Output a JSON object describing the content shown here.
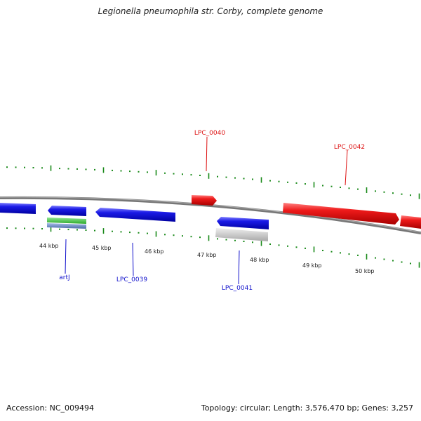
{
  "title": "Legionella pneumophila str. Corby, complete genome",
  "footer": {
    "accession": "Accession: NC_009494",
    "summary": "Topology: circular; Length: 3,576,470 bp; Genes: 3,257"
  },
  "colors": {
    "forward": "#e01010",
    "reverse": "#1a1ae0",
    "backbone": "#8a8a8a",
    "tick": "#1a8a1a",
    "rna_green": "#44cc44",
    "rna_steel": "#6a8ccc",
    "pseudo": "#c8c8c8"
  },
  "scale": {
    "ticks": [
      {
        "label": "44 kbp"
      },
      {
        "label": "45 kbp"
      },
      {
        "label": "46 kbp"
      },
      {
        "label": "47 kbp"
      },
      {
        "label": "48 kbp"
      },
      {
        "label": "49 kbp"
      },
      {
        "label": "50 kbp"
      }
    ]
  },
  "labels": {
    "forward": [
      "LPC_0040",
      "LPC_0042"
    ],
    "reverse": [
      "artJ",
      "LPC_0039",
      "LPC_0041"
    ]
  }
}
